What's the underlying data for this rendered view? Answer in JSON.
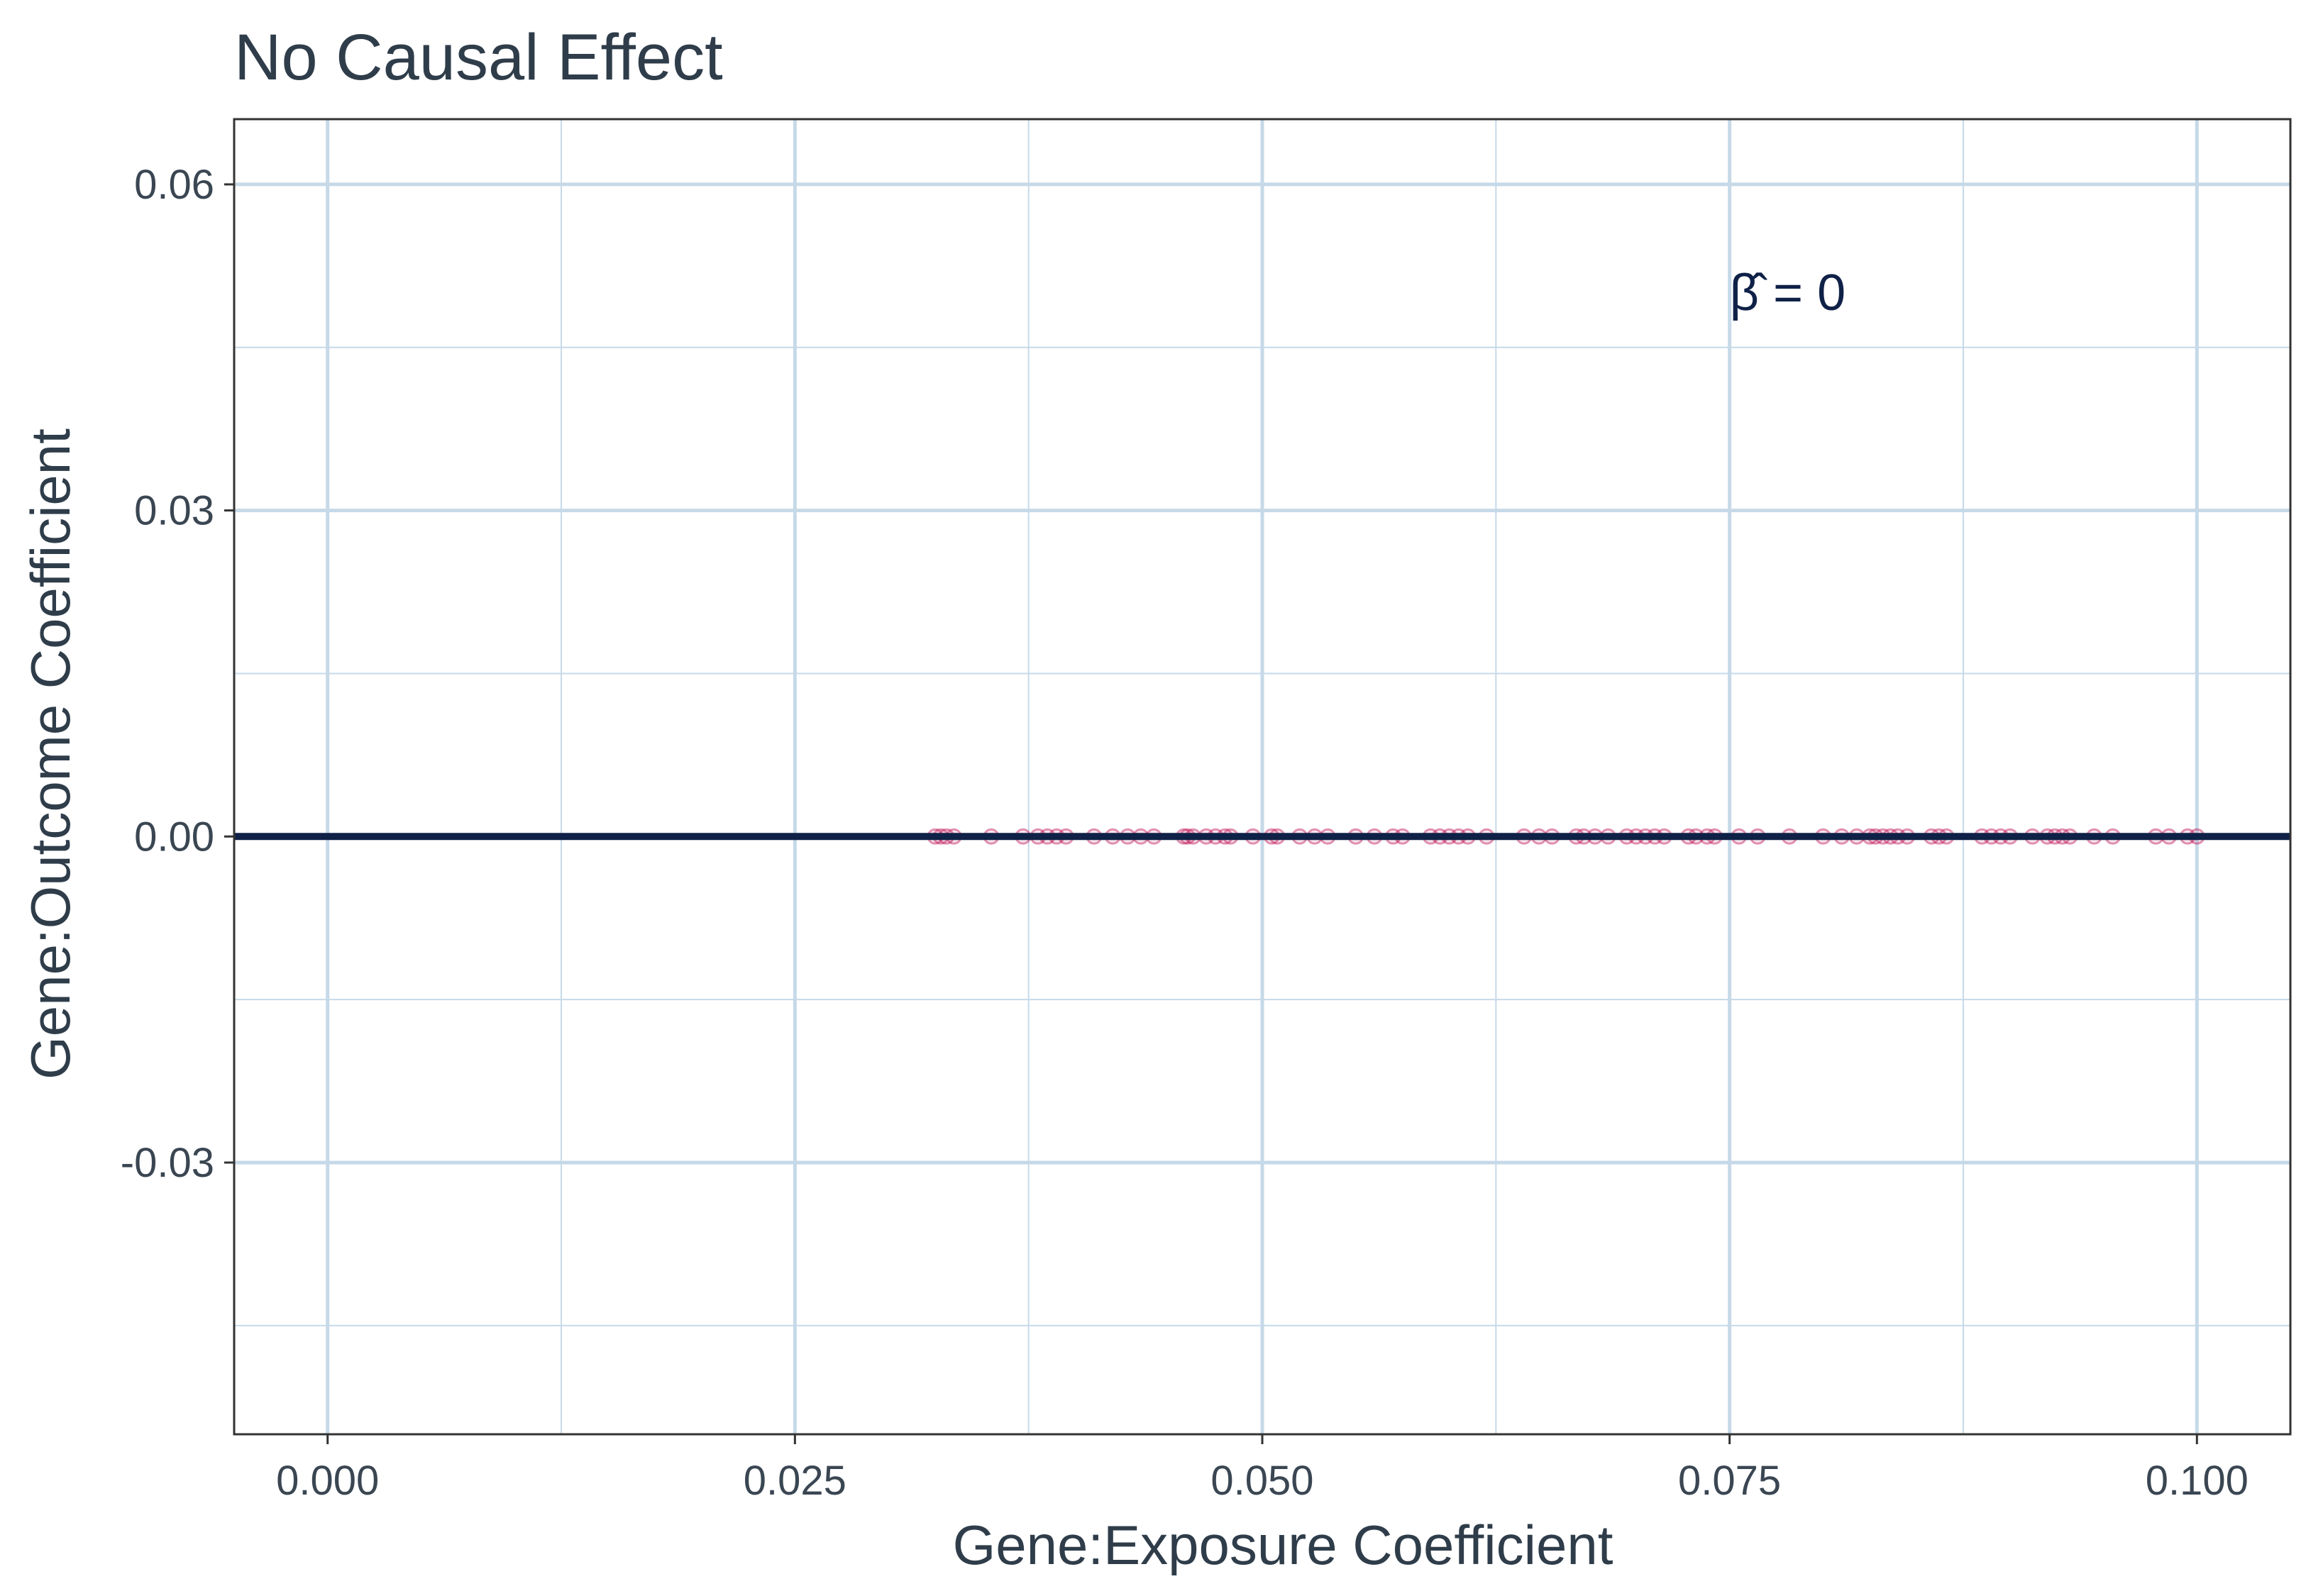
{
  "chart_data": {
    "type": "scatter",
    "title": "No Causal Effect",
    "xlabel": "Gene:Exposure Coefficient",
    "ylabel": "Gene:Outcome Coefficient",
    "xlim": [
      -0.005,
      0.105
    ],
    "ylim": [
      -0.055,
      0.066
    ],
    "x_ticks": [
      0.0,
      0.025,
      0.05,
      0.075,
      0.1
    ],
    "x_tick_labels": [
      "0.000",
      "0.025",
      "0.050",
      "0.075",
      "0.100"
    ],
    "y_ticks": [
      -0.03,
      0.0,
      0.03,
      0.06
    ],
    "y_tick_labels": [
      "-0.03",
      "0.00",
      "0.03",
      "0.06"
    ],
    "grid": true,
    "point_color": "#c2185b",
    "line_color": "#0f2147",
    "fit_line": {
      "slope": 0,
      "intercept": 0
    },
    "annotation": {
      "text": "β̂ = 0",
      "x": 0.075,
      "y": 0.05
    },
    "points": {
      "x": [
        0.0325,
        0.0328,
        0.0331,
        0.0335,
        0.0355,
        0.0372,
        0.038,
        0.0385,
        0.039,
        0.0395,
        0.041,
        0.042,
        0.0428,
        0.0435,
        0.0442,
        0.0458,
        0.046,
        0.0463,
        0.047,
        0.0475,
        0.048,
        0.0483,
        0.0495,
        0.0505,
        0.0508,
        0.052,
        0.0528,
        0.0535,
        0.055,
        0.056,
        0.057,
        0.0575,
        0.059,
        0.0595,
        0.06,
        0.0605,
        0.061,
        0.062,
        0.064,
        0.0648,
        0.0655,
        0.0668,
        0.0672,
        0.0678,
        0.0685,
        0.0695,
        0.07,
        0.0705,
        0.071,
        0.0715,
        0.0728,
        0.0732,
        0.0738,
        0.0742,
        0.0755,
        0.0765,
        0.0782,
        0.08,
        0.081,
        0.0818,
        0.0825,
        0.0828,
        0.0832,
        0.0836,
        0.084,
        0.0845,
        0.0858,
        0.0862,
        0.0866,
        0.0885,
        0.089,
        0.0895,
        0.09,
        0.0912,
        0.092,
        0.0924,
        0.0928,
        0.0932,
        0.0945,
        0.0955,
        0.0978,
        0.0985,
        0.0995,
        0.1
      ],
      "y": [
        0,
        0,
        0,
        0,
        0,
        0,
        0,
        0,
        0,
        0,
        0,
        0,
        0,
        0,
        0,
        0,
        0,
        0,
        0,
        0,
        0,
        0,
        0,
        0,
        0,
        0,
        0,
        0,
        0,
        0,
        0,
        0,
        0,
        0,
        0,
        0,
        0,
        0,
        0,
        0,
        0,
        0,
        0,
        0,
        0,
        0,
        0,
        0,
        0,
        0,
        0,
        0,
        0,
        0,
        0,
        0,
        0,
        0,
        0,
        0,
        0,
        0,
        0,
        0,
        0,
        0,
        0,
        0,
        0,
        0,
        0,
        0,
        0,
        0,
        0,
        0,
        0,
        0,
        0,
        0,
        0,
        0,
        0,
        0
      ]
    }
  }
}
